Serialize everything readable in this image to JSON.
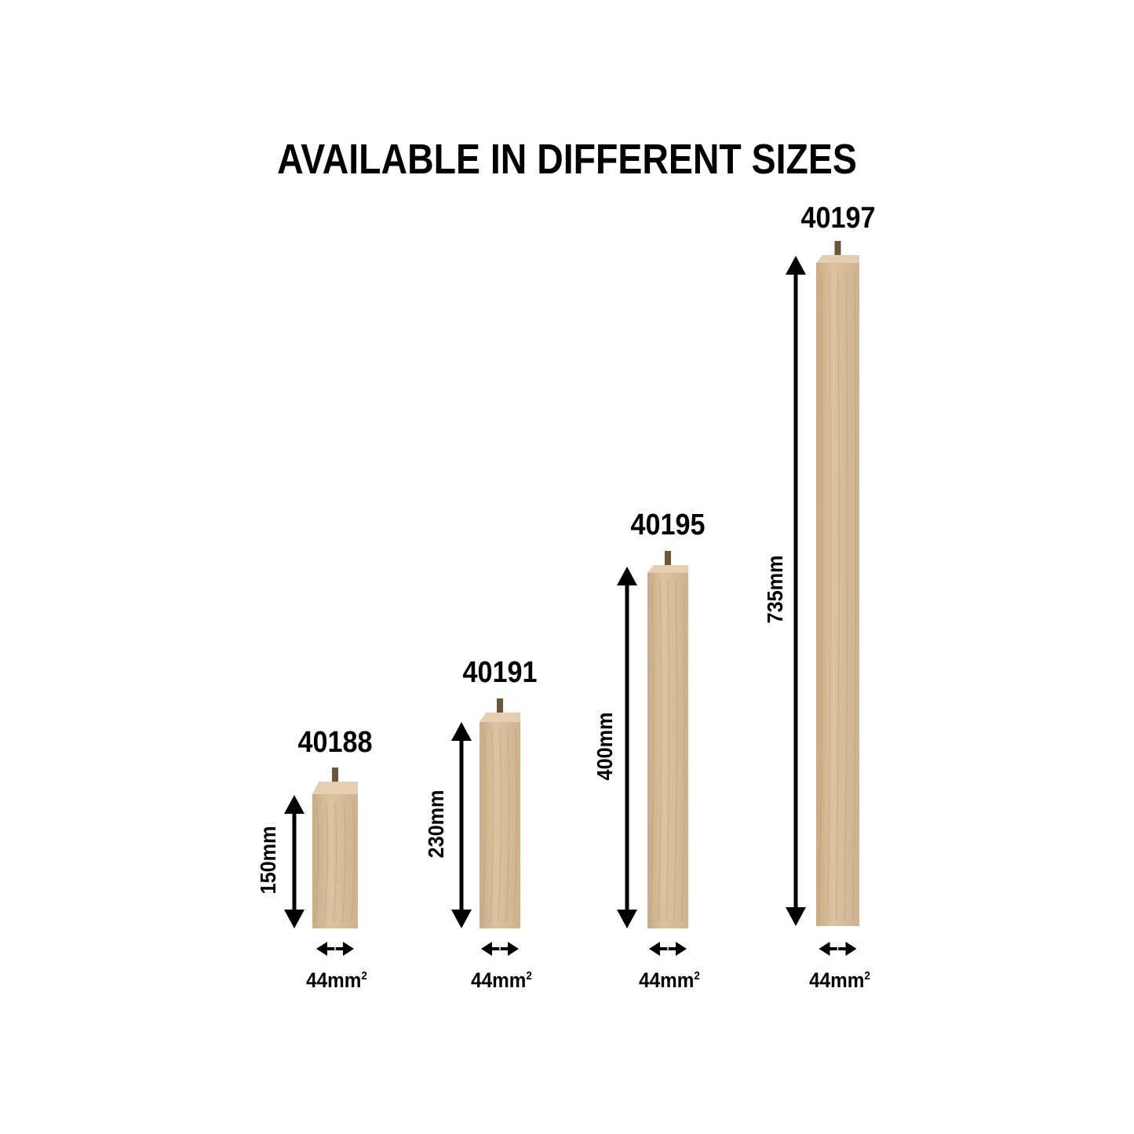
{
  "title": "AVAILABLE IN DIFFERENT SIZES",
  "wood_color": "#d9bf9c",
  "products": [
    {
      "code": "40188",
      "length": "150mm",
      "width": "44mm",
      "width_unit_sup": "2"
    },
    {
      "code": "40191",
      "length": "230mm",
      "width": "44mm",
      "width_unit_sup": "2"
    },
    {
      "code": "40195",
      "length": "400mm",
      "width": "44mm",
      "width_unit_sup": "2"
    },
    {
      "code": "40197",
      "length": "735mm",
      "width": "44mm",
      "width_unit_sup": "2"
    }
  ]
}
